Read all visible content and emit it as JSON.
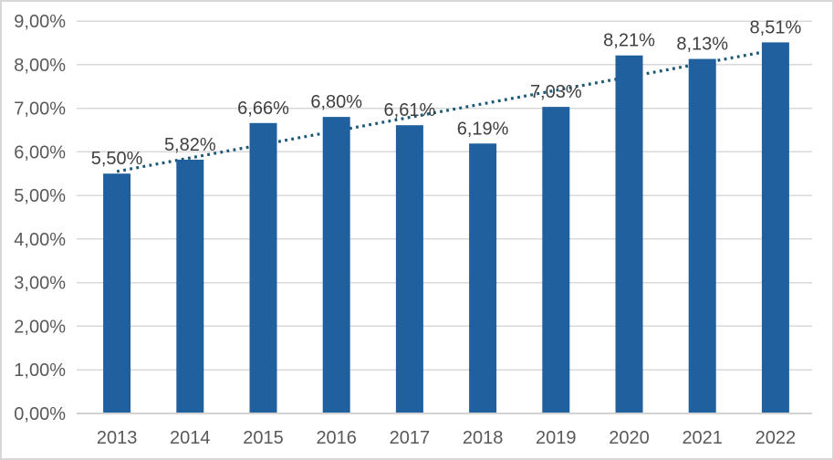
{
  "chart_data": {
    "type": "bar",
    "title": "",
    "xlabel": "",
    "ylabel": "",
    "categories": [
      "2013",
      "2014",
      "2015",
      "2016",
      "2017",
      "2018",
      "2019",
      "2020",
      "2021",
      "2022"
    ],
    "values": [
      5.5,
      5.82,
      6.66,
      6.8,
      6.61,
      6.19,
      7.03,
      8.21,
      8.13,
      8.51
    ],
    "value_labels": [
      "5,50%",
      "5,82%",
      "6,66%",
      "6,80%",
      "6,61%",
      "6,19%",
      "7,03%",
      "8,21%",
      "8,13%",
      "8,51%"
    ],
    "ylim": [
      0,
      9
    ],
    "ytick_step": 1,
    "ytick_labels": [
      "0,00%",
      "1,00%",
      "2,00%",
      "3,00%",
      "4,00%",
      "5,00%",
      "6,00%",
      "7,00%",
      "8,00%",
      "9,00%"
    ],
    "grid": true,
    "legend": "none",
    "decimal_separator": ",",
    "trendline": {
      "type": "linear",
      "style": "dotted",
      "start_value": 5.55,
      "end_value": 8.34,
      "drawn_behind_bars": true
    },
    "colors": {
      "bar": "#21609E",
      "trendline": "#1A5876",
      "gridline": "#D9D9D9",
      "axis_line": "#D2D2D2",
      "axis_text": "#595959",
      "data_label_text": "#404040",
      "background": "#FFFFFF",
      "border": "#D7D7D7"
    }
  }
}
